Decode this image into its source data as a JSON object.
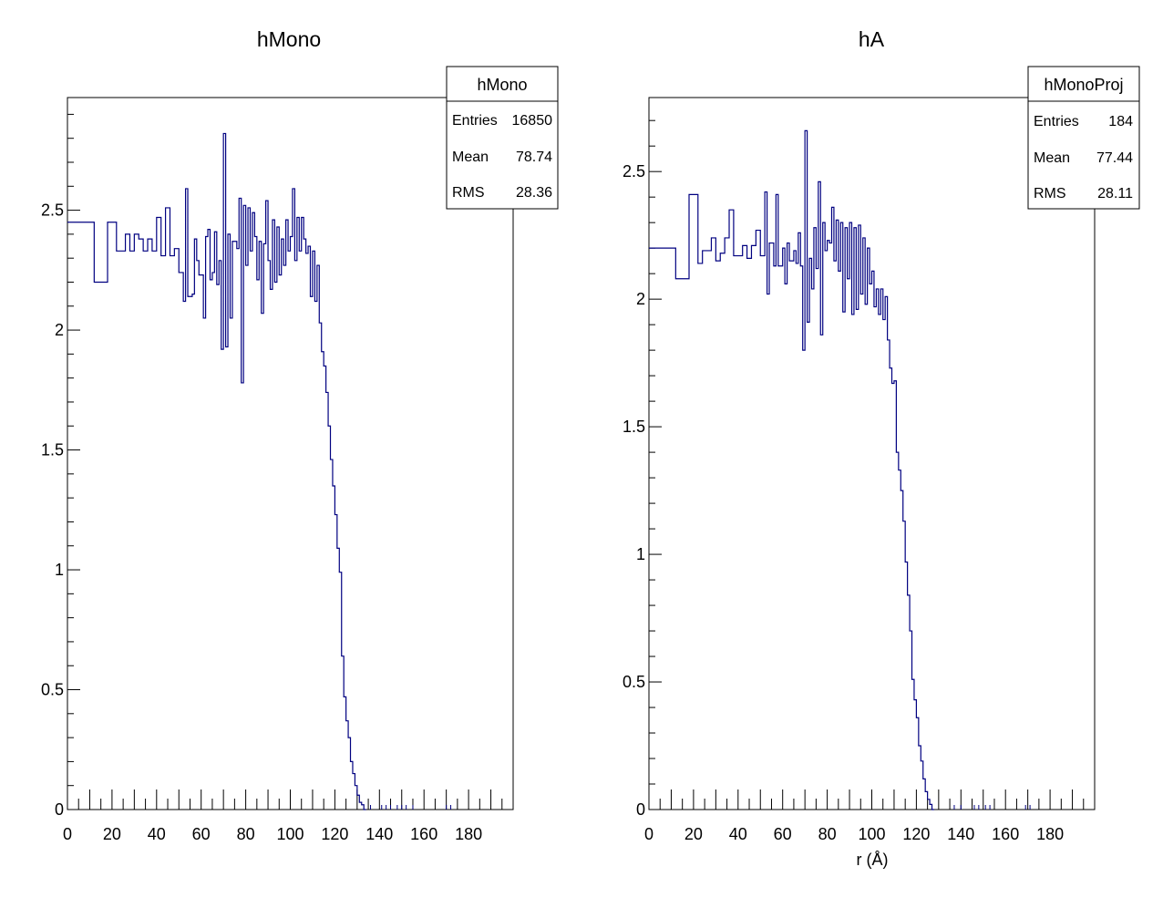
{
  "chart_data": [
    {
      "type": "step",
      "title": "hMono",
      "xlabel": "",
      "ylabel": "",
      "xlim": [
        0,
        200
      ],
      "ylim": [
        0,
        2.97
      ],
      "x_ticks": [
        "0",
        "20",
        "40",
        "60",
        "80",
        "100",
        "120",
        "140",
        "160",
        "180"
      ],
      "y_ticks": [
        "0",
        "0.5",
        "1",
        "1.5",
        "2",
        "2.5"
      ],
      "line_color": "#000080",
      "stats": {
        "name": "hMono",
        "rows": [
          {
            "label": "Entries",
            "value": "16850"
          },
          {
            "label": "Mean",
            "value": "78.74"
          },
          {
            "label": "RMS",
            "value": "28.36"
          }
        ]
      },
      "bins": [
        [
          0,
          2.45
        ],
        [
          12,
          2.2
        ],
        [
          18,
          2.45
        ],
        [
          22,
          2.33
        ],
        [
          26,
          2.4
        ],
        [
          28,
          2.33
        ],
        [
          30,
          2.4
        ],
        [
          32,
          2.38
        ],
        [
          34,
          2.33
        ],
        [
          36,
          2.38
        ],
        [
          38,
          2.33
        ],
        [
          40,
          2.47
        ],
        [
          42,
          2.31
        ],
        [
          44,
          2.51
        ],
        [
          46,
          2.31
        ],
        [
          48,
          2.34
        ],
        [
          50,
          2.24
        ],
        [
          52,
          2.12
        ],
        [
          53,
          2.59
        ],
        [
          54,
          2.14
        ],
        [
          56,
          2.15
        ],
        [
          57,
          2.38
        ],
        [
          58,
          2.29
        ],
        [
          59,
          2.23
        ],
        [
          61,
          2.05
        ],
        [
          62,
          2.39
        ],
        [
          63,
          2.42
        ],
        [
          64,
          2.21
        ],
        [
          65,
          2.24
        ],
        [
          66,
          2.41
        ],
        [
          67,
          2.19
        ],
        [
          68,
          2.29
        ],
        [
          69,
          1.92
        ],
        [
          70,
          2.82
        ],
        [
          71,
          1.93
        ],
        [
          72,
          2.4
        ],
        [
          73,
          2.05
        ],
        [
          74,
          2.37
        ],
        [
          75,
          2.37
        ],
        [
          76,
          2.34
        ],
        [
          77,
          2.55
        ],
        [
          78,
          1.78
        ],
        [
          79,
          2.52
        ],
        [
          80,
          2.27
        ],
        [
          81,
          2.51
        ],
        [
          82,
          2.33
        ],
        [
          83,
          2.49
        ],
        [
          84,
          2.39
        ],
        [
          85,
          2.21
        ],
        [
          86,
          2.37
        ],
        [
          87,
          2.07
        ],
        [
          88,
          2.36
        ],
        [
          89,
          2.54
        ],
        [
          90,
          2.29
        ],
        [
          91,
          2.17
        ],
        [
          92,
          2.46
        ],
        [
          93,
          2.2
        ],
        [
          94,
          2.43
        ],
        [
          95,
          2.23
        ],
        [
          96,
          2.38
        ],
        [
          97,
          2.27
        ],
        [
          98,
          2.46
        ],
        [
          99,
          2.33
        ],
        [
          100,
          2.39
        ],
        [
          101,
          2.59
        ],
        [
          102,
          2.29
        ],
        [
          103,
          2.47
        ],
        [
          104,
          2.33
        ],
        [
          105,
          2.47
        ],
        [
          106,
          2.38
        ],
        [
          107,
          2.32
        ],
        [
          108,
          2.35
        ],
        [
          109,
          2.14
        ],
        [
          110,
          2.33
        ],
        [
          111,
          2.12
        ],
        [
          112,
          2.27
        ],
        [
          113,
          2.03
        ],
        [
          114,
          1.91
        ],
        [
          115,
          1.85
        ],
        [
          116,
          1.74
        ],
        [
          117,
          1.6
        ],
        [
          118,
          1.46
        ],
        [
          119,
          1.35
        ],
        [
          120,
          1.23
        ],
        [
          121,
          1.09
        ],
        [
          122,
          0.99
        ],
        [
          123,
          0.64
        ],
        [
          124,
          0.47
        ],
        [
          125,
          0.37
        ],
        [
          126,
          0.3
        ],
        [
          127,
          0.2
        ],
        [
          128,
          0.15
        ],
        [
          129,
          0.1
        ],
        [
          130,
          0.06
        ],
        [
          131,
          0.03
        ],
        [
          132,
          0.02
        ],
        [
          133,
          0.0
        ]
      ]
    },
    {
      "type": "step",
      "title": "hA",
      "xlabel": "r (Å)",
      "ylabel": "",
      "xlim": [
        0,
        200
      ],
      "ylim": [
        0,
        2.79
      ],
      "x_ticks": [
        "0",
        "20",
        "40",
        "60",
        "80",
        "100",
        "120",
        "140",
        "160",
        "180"
      ],
      "y_ticks": [
        "0",
        "0.5",
        "1",
        "1.5",
        "2",
        "2.5"
      ],
      "line_color": "#000080",
      "stats": {
        "name": "hMonoProj",
        "rows": [
          {
            "label": "Entries",
            "value": "184"
          },
          {
            "label": "Mean",
            "value": "77.44"
          },
          {
            "label": "RMS",
            "value": "28.11"
          }
        ]
      },
      "bins": [
        [
          0,
          2.2
        ],
        [
          12,
          2.08
        ],
        [
          18,
          2.41
        ],
        [
          22,
          2.14
        ],
        [
          24,
          2.19
        ],
        [
          28,
          2.24
        ],
        [
          30,
          2.15
        ],
        [
          32,
          2.18
        ],
        [
          34,
          2.24
        ],
        [
          36,
          2.35
        ],
        [
          38,
          2.17
        ],
        [
          40,
          2.17
        ],
        [
          42,
          2.21
        ],
        [
          44,
          2.16
        ],
        [
          46,
          2.21
        ],
        [
          48,
          2.27
        ],
        [
          50,
          2.17
        ],
        [
          52,
          2.42
        ],
        [
          53,
          2.02
        ],
        [
          54,
          2.22
        ],
        [
          56,
          2.13
        ],
        [
          57,
          2.41
        ],
        [
          58,
          2.13
        ],
        [
          60,
          2.2
        ],
        [
          61,
          2.06
        ],
        [
          62,
          2.22
        ],
        [
          63,
          2.15
        ],
        [
          65,
          2.19
        ],
        [
          66,
          2.14
        ],
        [
          67,
          2.26
        ],
        [
          68,
          2.13
        ],
        [
          69,
          1.8
        ],
        [
          70,
          2.66
        ],
        [
          71,
          1.91
        ],
        [
          72,
          2.16
        ],
        [
          73,
          2.04
        ],
        [
          74,
          2.28
        ],
        [
          75,
          2.12
        ],
        [
          76,
          2.46
        ],
        [
          77,
          1.86
        ],
        [
          78,
          2.3
        ],
        [
          79,
          2.19
        ],
        [
          80,
          2.23
        ],
        [
          81,
          2.22
        ],
        [
          82,
          2.36
        ],
        [
          83,
          2.15
        ],
        [
          84,
          2.31
        ],
        [
          85,
          2.11
        ],
        [
          86,
          2.3
        ],
        [
          87,
          1.95
        ],
        [
          88,
          2.28
        ],
        [
          89,
          2.08
        ],
        [
          90,
          2.3
        ],
        [
          91,
          1.94
        ],
        [
          92,
          2.28
        ],
        [
          93,
          1.96
        ],
        [
          94,
          2.29
        ],
        [
          95,
          2.02
        ],
        [
          96,
          2.24
        ],
        [
          97,
          1.98
        ],
        [
          98,
          2.2
        ],
        [
          99,
          2.06
        ],
        [
          100,
          2.11
        ],
        [
          101,
          1.97
        ],
        [
          102,
          2.04
        ],
        [
          103,
          1.94
        ],
        [
          104,
          2.04
        ],
        [
          105,
          1.92
        ],
        [
          106,
          2.01
        ],
        [
          107,
          1.84
        ],
        [
          108,
          1.73
        ],
        [
          109,
          1.67
        ],
        [
          110,
          1.68
        ],
        [
          111,
          1.4
        ],
        [
          112,
          1.33
        ],
        [
          113,
          1.25
        ],
        [
          114,
          1.13
        ],
        [
          115,
          0.97
        ],
        [
          116,
          0.84
        ],
        [
          117,
          0.7
        ],
        [
          118,
          0.51
        ],
        [
          119,
          0.43
        ],
        [
          120,
          0.36
        ],
        [
          121,
          0.25
        ],
        [
          122,
          0.19
        ],
        [
          123,
          0.12
        ],
        [
          124,
          0.07
        ],
        [
          125,
          0.04
        ],
        [
          126,
          0.02
        ],
        [
          127,
          0.0
        ]
      ]
    }
  ]
}
